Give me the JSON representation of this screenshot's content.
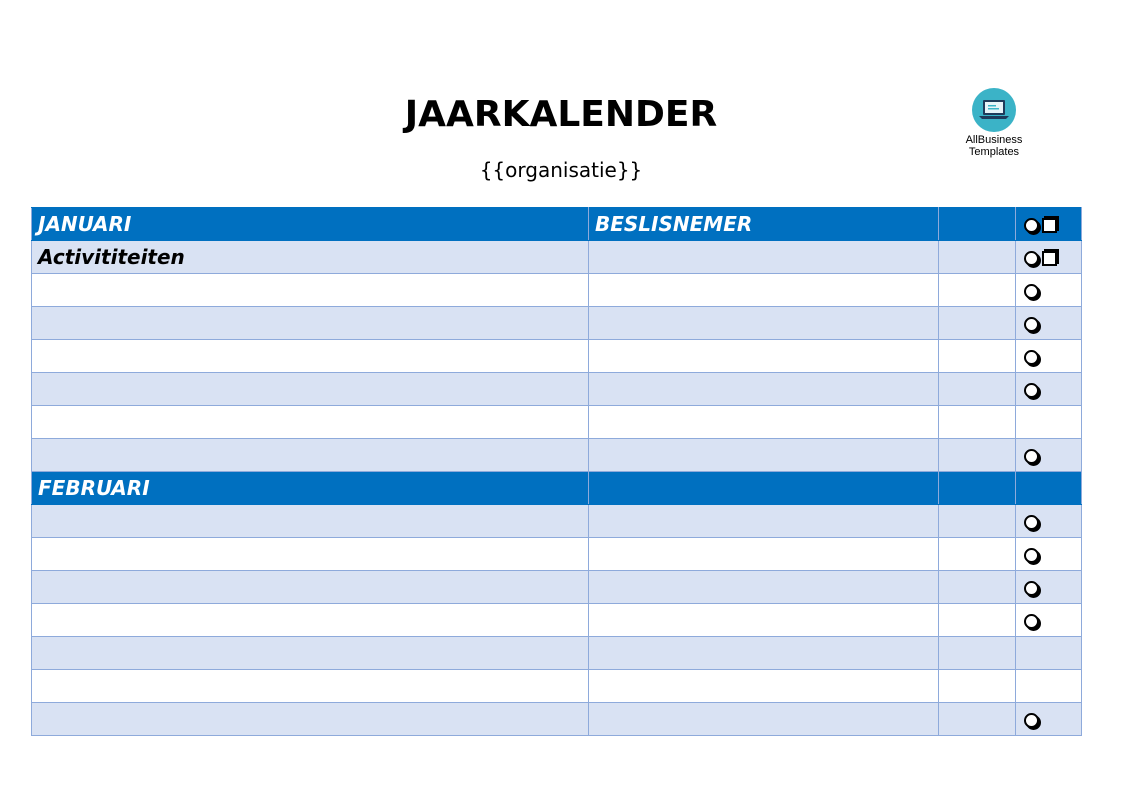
{
  "header": {
    "title": "JAARKALENDER",
    "subtitle": "{{organisatie}}"
  },
  "logo": {
    "line1": "AllBusiness",
    "line2": "Templates",
    "color": "#3bb3c7"
  },
  "colors": {
    "month_header": "#0070c0",
    "row_shade": "#d9e2f3",
    "border": "#8eaadb"
  },
  "table": {
    "rows": [
      {
        "type": "month",
        "label": "JANUARI",
        "col2": "BESLISNEMER",
        "symbols": [
          "circle",
          "square"
        ]
      },
      {
        "type": "subhead",
        "shade": true,
        "label": "Activititeiten",
        "col2": "",
        "symbols": [
          "circle",
          "square"
        ]
      },
      {
        "type": "row",
        "shade": false,
        "label": "",
        "col2": "",
        "symbols": [
          "circle"
        ]
      },
      {
        "type": "row",
        "shade": true,
        "label": "",
        "col2": "",
        "symbols": [
          "circle"
        ]
      },
      {
        "type": "row",
        "shade": false,
        "label": "",
        "col2": "",
        "symbols": [
          "circle"
        ]
      },
      {
        "type": "row",
        "shade": true,
        "label": "",
        "col2": "",
        "symbols": [
          "circle"
        ]
      },
      {
        "type": "row",
        "shade": false,
        "label": "",
        "col2": "",
        "symbols": []
      },
      {
        "type": "row",
        "shade": true,
        "label": "",
        "col2": "",
        "symbols": [
          "circle"
        ]
      },
      {
        "type": "month",
        "label": "FEBRUARI",
        "col2": "",
        "symbols": []
      },
      {
        "type": "row",
        "shade": true,
        "label": "",
        "col2": "",
        "symbols": [
          "circle"
        ]
      },
      {
        "type": "row",
        "shade": false,
        "label": "",
        "col2": "",
        "symbols": [
          "circle"
        ]
      },
      {
        "type": "row",
        "shade": true,
        "label": "",
        "col2": "",
        "symbols": [
          "circle"
        ]
      },
      {
        "type": "row",
        "shade": false,
        "label": "",
        "col2": "",
        "symbols": [
          "circle"
        ]
      },
      {
        "type": "row",
        "shade": true,
        "label": "",
        "col2": "",
        "symbols": []
      },
      {
        "type": "row",
        "shade": false,
        "label": "",
        "col2": "",
        "symbols": []
      },
      {
        "type": "row",
        "shade": true,
        "label": "",
        "col2": "",
        "symbols": [
          "circle"
        ]
      }
    ]
  }
}
